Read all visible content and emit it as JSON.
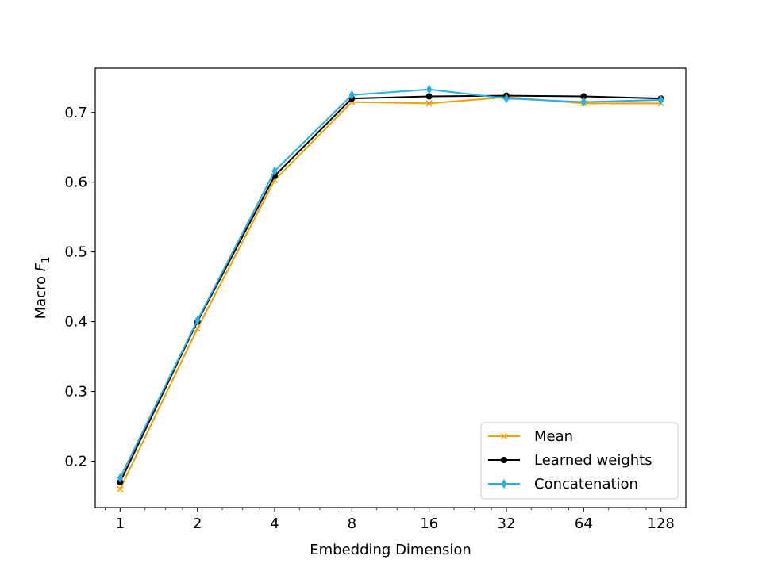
{
  "chart_data": {
    "type": "line",
    "title": "",
    "xlabel": "Embedding Dimension",
    "ylabel_prefix": "Macro ",
    "ylabel_var": "F",
    "ylabel_sub": "1",
    "x_scale": "log2",
    "x": [
      1,
      2,
      4,
      8,
      16,
      32,
      64,
      128
    ],
    "x_tick_labels": [
      "1",
      "2",
      "4",
      "8",
      "16",
      "32",
      "64",
      "128"
    ],
    "y_ticks": [
      0.2,
      0.3,
      0.4,
      0.5,
      0.6,
      0.7
    ],
    "y_tick_labels": [
      "0.2",
      "0.3",
      "0.4",
      "0.5",
      "0.6",
      "0.7"
    ],
    "xlim": [
      0.8,
      160
    ],
    "ylim": [
      0.1335,
      0.7634
    ],
    "grid": false,
    "legend_position": "lower-right",
    "series": [
      {
        "name": "Mean",
        "color": "#f0a000",
        "marker": "x",
        "values": [
          0.16,
          0.39,
          0.603,
          0.715,
          0.713,
          0.722,
          0.713,
          0.713
        ]
      },
      {
        "name": "Learned weights",
        "color": "#000000",
        "marker": "circle",
        "values": [
          0.17,
          0.4,
          0.609,
          0.72,
          0.723,
          0.724,
          0.723,
          0.72
        ]
      },
      {
        "name": "Concatenation",
        "color": "#29b0e4",
        "marker": "thin-diamond",
        "values": [
          0.176,
          0.402,
          0.616,
          0.725,
          0.733,
          0.72,
          0.715,
          0.718
        ]
      }
    ]
  }
}
